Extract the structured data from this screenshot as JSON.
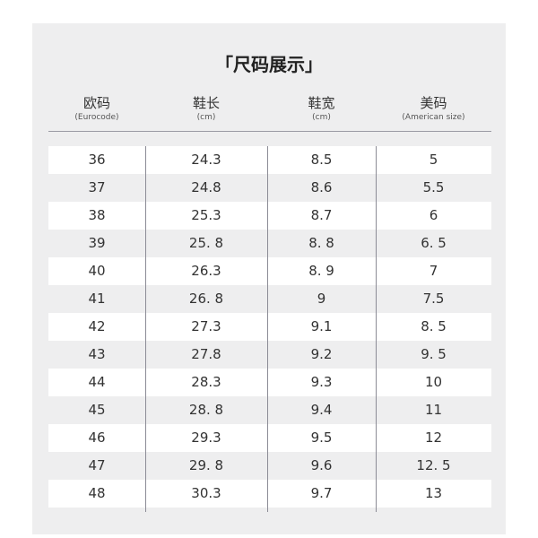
{
  "title": "「尺码展示」",
  "columns": [
    {
      "main": "欧码",
      "sub": "(Eurocode)"
    },
    {
      "main": "鞋长",
      "sub": "(cm)"
    },
    {
      "main": "鞋宽",
      "sub": "(cm)"
    },
    {
      "main": "美码",
      "sub": "(American size)"
    }
  ],
  "rows": [
    [
      "36",
      "24.3",
      "8.5",
      "5"
    ],
    [
      "37",
      "24.8",
      "8.6",
      "5.5"
    ],
    [
      "38",
      "25.3",
      "8.7",
      "6"
    ],
    [
      "39",
      "25. 8",
      "8. 8",
      "6. 5"
    ],
    [
      "40",
      "26.3",
      "8. 9",
      "7"
    ],
    [
      "41",
      "26. 8",
      "9",
      "7.5"
    ],
    [
      "42",
      "27.3",
      "9.1",
      "8. 5"
    ],
    [
      "43",
      "27.8",
      "9.2",
      "9. 5"
    ],
    [
      "44",
      "28.3",
      "9.3",
      "10"
    ],
    [
      "45",
      "28. 8",
      "9.4",
      "11"
    ],
    [
      "46",
      "29.3",
      "9.5",
      "12"
    ],
    [
      "47",
      "29. 8",
      "9.6",
      "12. 5"
    ],
    [
      "48",
      "30.3",
      "9.7",
      "13"
    ]
  ]
}
